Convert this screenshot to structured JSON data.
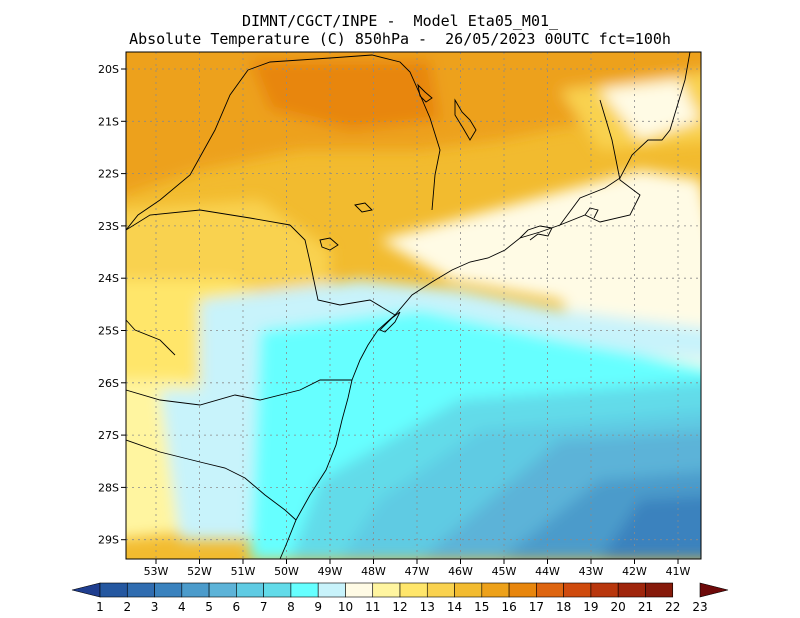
{
  "header": {
    "line1": "DIMNT/CGCT/INPE -  Model Eta05_M01_",
    "line2": "Absolute Temperature (C) 850hPa -  26/05/2023 00UTC fct=100h"
  },
  "map": {
    "lat_labels": [
      "20S",
      "21S",
      "22S",
      "23S",
      "24S",
      "25S",
      "26S",
      "27S",
      "28S",
      "29S"
    ],
    "lon_labels": [
      "53W",
      "52W",
      "51W",
      "50W",
      "49W",
      "48W",
      "47W",
      "46W",
      "45W",
      "44W",
      "43W",
      "42W",
      "41W"
    ]
  },
  "colorbar": {
    "labels": [
      "1",
      "2",
      "3",
      "4",
      "5",
      "6",
      "7",
      "8",
      "9",
      "10",
      "11",
      "12",
      "13",
      "14",
      "15",
      "16",
      "17",
      "18",
      "19",
      "20",
      "21",
      "22",
      "23"
    ],
    "colors": [
      "#1f3e8f",
      "#2457a0",
      "#2f6cb0",
      "#3a82be",
      "#4b9bcb",
      "#5cb3d8",
      "#5fcbe3",
      "#62dbe9",
      "#66ffff",
      "#c8f3fb",
      "#fffbe5",
      "#fff5a0",
      "#ffe66b",
      "#f9d24f",
      "#f2bb2f",
      "#eda11a",
      "#e8860d",
      "#de6510",
      "#cf4a0d",
      "#b8360c",
      "#9f250b",
      "#861a0a",
      "#6e0a0a"
    ]
  }
}
